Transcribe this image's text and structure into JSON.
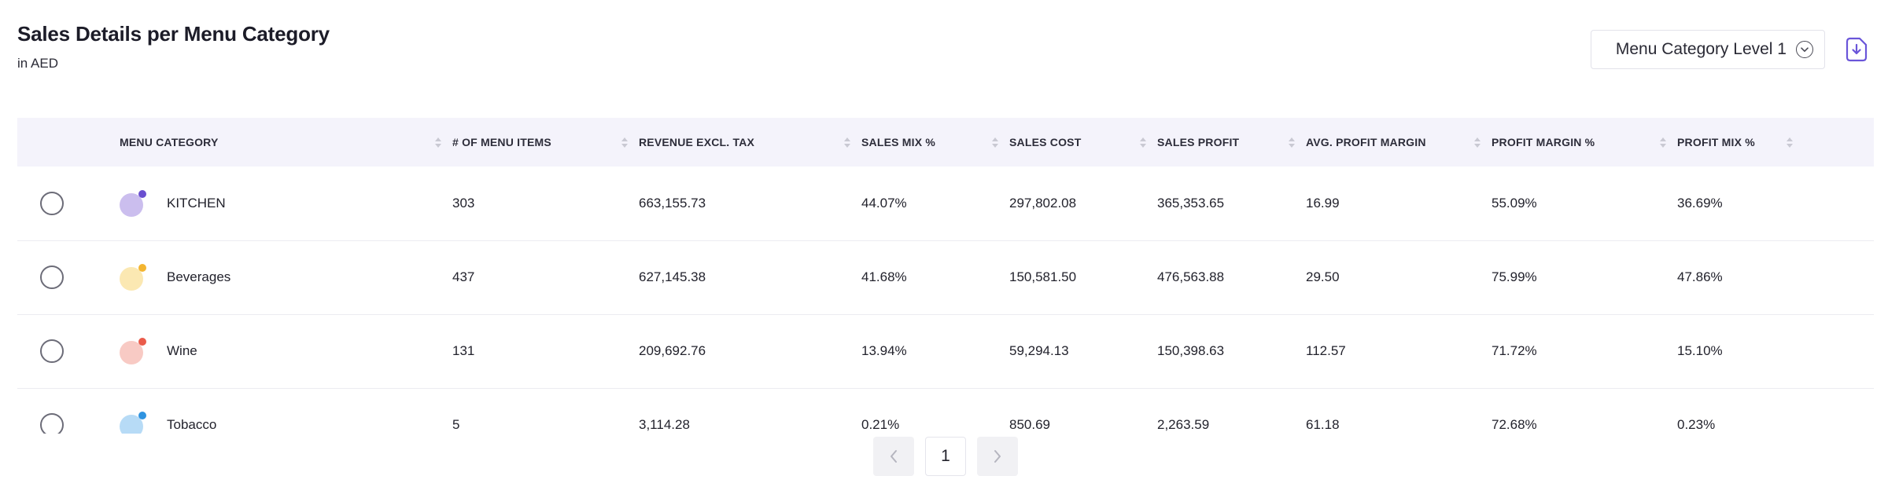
{
  "header": {
    "title": "Sales Details per Menu Category",
    "subtitle": "in AED"
  },
  "controls": {
    "level_select": "Menu Category Level 1",
    "download_icon": "download-icon"
  },
  "table": {
    "columns": [
      "MENU CATEGORY",
      "# OF MENU ITEMS",
      "REVENUE EXCL. TAX",
      "SALES MIX %",
      "SALES COST",
      "SALES PROFIT",
      "AVG. PROFIT MARGIN",
      "PROFIT MARGIN %",
      "PROFIT MIX %"
    ],
    "rows": [
      {
        "category": "KITCHEN",
        "icon_color": "#8b6fd9",
        "items": "303",
        "revenue": "663,155.73",
        "sales_mix": "44.07%",
        "sales_cost": "297,802.08",
        "sales_profit": "365,353.65",
        "avg_margin": "16.99",
        "margin_pct": "55.09%",
        "profit_mix": "36.69%"
      },
      {
        "category": "Beverages",
        "icon_color": "#f3b531",
        "items": "437",
        "revenue": "627,145.38",
        "sales_mix": "41.68%",
        "sales_cost": "150,581.50",
        "sales_profit": "476,563.88",
        "avg_margin": "29.50",
        "margin_pct": "75.99%",
        "profit_mix": "47.86%"
      },
      {
        "category": "Wine",
        "icon_color": "#ea5b4a",
        "items": "131",
        "revenue": "209,692.76",
        "sales_mix": "13.94%",
        "sales_cost": "59,294.13",
        "sales_profit": "150,398.63",
        "avg_margin": "112.57",
        "margin_pct": "71.72%",
        "profit_mix": "15.10%"
      },
      {
        "category": "Tobacco",
        "icon_color": "#2f93e0",
        "items": "5",
        "revenue": "3,114.28",
        "sales_mix": "0.21%",
        "sales_cost": "850.69",
        "sales_profit": "2,263.59",
        "avg_margin": "61.18",
        "margin_pct": "72.68%",
        "profit_mix": "0.23%"
      }
    ]
  },
  "pagination": {
    "current_page": "1",
    "prev_icon": "chevron-left-icon",
    "next_icon": "chevron-right-icon"
  }
}
